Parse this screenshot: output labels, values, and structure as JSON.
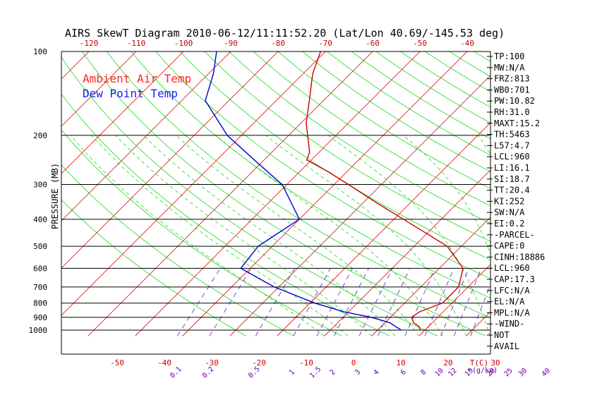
{
  "chart_data": {
    "type": "line",
    "title": "AIRS SkewT Diagram 2010-06-12/11:11:52.20 (Lat/Lon 40.69/-145.53 deg)",
    "ylabel": "PRESSURE (MB)",
    "y_scale": "log",
    "ylim": [
      1050,
      100
    ],
    "xlim": [
      -50,
      40
    ],
    "pressure_ticks": [
      100,
      200,
      300,
      400,
      500,
      600,
      700,
      800,
      900,
      1000
    ],
    "top_temp_ticks": [
      -120,
      -110,
      -100,
      -90,
      -80,
      -70,
      -60,
      -50,
      -40
    ],
    "bottom_temp_ticks": [
      -50,
      -40,
      -30,
      -20,
      -10,
      0,
      10,
      20,
      30
    ],
    "temp_unit_label": "T(C)",
    "mixing_ratio_ticks": [
      "0.1",
      "0.2",
      "0.5",
      "1",
      "1.5",
      "2",
      "3",
      "4",
      "6",
      "8",
      "10",
      "12",
      "15",
      "20",
      "25",
      "30",
      "40"
    ],
    "mixing_ratio_unit_label": "r(g/kg)",
    "legend": [
      {
        "name": "Ambient Air Temp",
        "color": "#ff2222"
      },
      {
        "name": "Dew Point Temp",
        "color": "#1a1aff"
      }
    ],
    "series": [
      {
        "name": "Ambient Air Temp",
        "color": "#cc0000",
        "points": [
          {
            "p": 1000,
            "t": 9
          },
          {
            "p": 970,
            "t": 8
          },
          {
            "p": 940,
            "t": 6
          },
          {
            "p": 900,
            "t": 4.5
          },
          {
            "p": 860,
            "t": 5
          },
          {
            "p": 800,
            "t": 8
          },
          {
            "p": 700,
            "t": 8
          },
          {
            "p": 600,
            "t": 5
          },
          {
            "p": 500,
            "t": -3
          },
          {
            "p": 400,
            "t": -18
          },
          {
            "p": 350,
            "t": -27
          },
          {
            "p": 300,
            "t": -37
          },
          {
            "p": 270,
            "t": -44
          },
          {
            "p": 245,
            "t": -51
          },
          {
            "p": 230,
            "t": -52
          },
          {
            "p": 200,
            "t": -56
          },
          {
            "p": 180,
            "t": -59
          },
          {
            "p": 150,
            "t": -63
          },
          {
            "p": 120,
            "t": -68
          },
          {
            "p": 100,
            "t": -71
          }
        ]
      },
      {
        "name": "Dew Point Temp",
        "color": "#0000cc",
        "points": [
          {
            "p": 1000,
            "t": 5
          },
          {
            "p": 970,
            "t": 3
          },
          {
            "p": 940,
            "t": 1
          },
          {
            "p": 900,
            "t": -4
          },
          {
            "p": 860,
            "t": -11
          },
          {
            "p": 800,
            "t": -19
          },
          {
            "p": 700,
            "t": -31
          },
          {
            "p": 600,
            "t": -42
          },
          {
            "p": 500,
            "t": -43
          },
          {
            "p": 400,
            "t": -40
          },
          {
            "p": 300,
            "t": -51
          },
          {
            "p": 250,
            "t": -61
          },
          {
            "p": 200,
            "t": -73
          },
          {
            "p": 150,
            "t": -85
          },
          {
            "p": 120,
            "t": -89
          },
          {
            "p": 100,
            "t": -93
          }
        ]
      }
    ]
  },
  "stats": [
    "TP:100",
    "MW:N/A",
    "FRZ:813",
    "WB0:701",
    "PW:10.82",
    "RH:31.0",
    "MAXT:15.2",
    "TH:5463",
    "L57:4.7",
    "LCL:960",
    "LI:16.1",
    "SI:18.7",
    "TT:20.4",
    "KI:252",
    "SW:N/A",
    "EI:0.2",
    "-PARCEL-",
    "CAPE:0",
    "CINH:18886",
    "LCL:960",
    "CAP:17.3",
    "LFC:N/A",
    "EL:N/A",
    "MPL:N/A",
    "-WIND-",
    "NOT",
    "AVAIL"
  ]
}
